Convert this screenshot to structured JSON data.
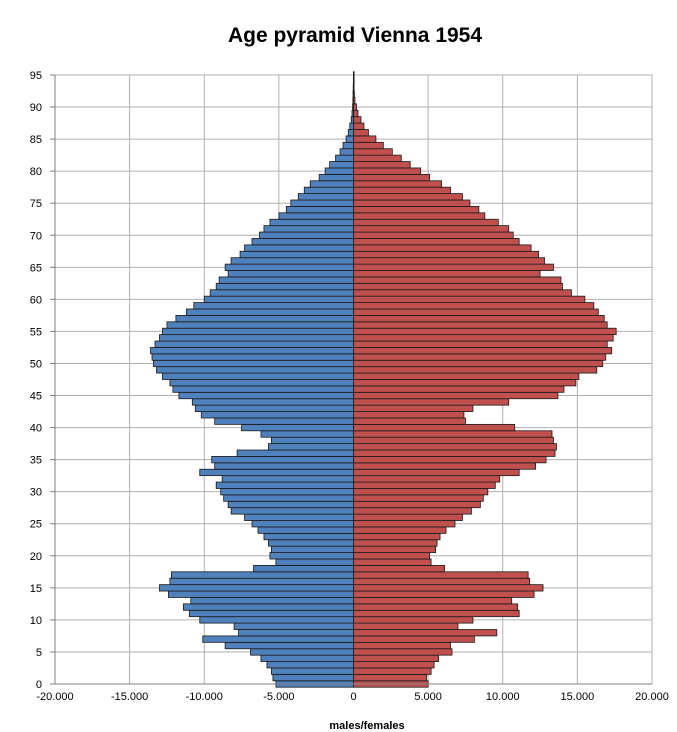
{
  "chart_data": {
    "type": "bar",
    "orientation": "horizontal",
    "title": "Age pyramid Vienna 1954",
    "xlabel": "males/females",
    "ylabel": "",
    "xlim": [
      -20000,
      20000
    ],
    "ylim": [
      0,
      95
    ],
    "x_ticks": [
      -20000,
      -15000,
      -10000,
      -5000,
      0,
      5000,
      10000,
      15000,
      20000
    ],
    "x_tick_labels": [
      "-20.000",
      "-15.000",
      "-10.000",
      "-5.000",
      "0",
      "5.000",
      "10.000",
      "15.000",
      "20.000"
    ],
    "y_ticks": [
      0,
      5,
      10,
      15,
      20,
      25,
      30,
      35,
      40,
      45,
      50,
      55,
      60,
      65,
      70,
      75,
      80,
      85,
      90,
      95
    ],
    "y_tick_labels": [
      "0",
      "5",
      "10",
      "15",
      "20",
      "25",
      "30",
      "35",
      "40",
      "45",
      "50",
      "55",
      "60",
      "65",
      "70",
      "75",
      "80",
      "85",
      "90",
      "95"
    ],
    "grid": true,
    "legend": "none",
    "categories": [
      0,
      1,
      2,
      3,
      4,
      5,
      6,
      7,
      8,
      9,
      10,
      11,
      12,
      13,
      14,
      15,
      16,
      17,
      18,
      19,
      20,
      21,
      22,
      23,
      24,
      25,
      26,
      27,
      28,
      29,
      30,
      31,
      32,
      33,
      34,
      35,
      36,
      37,
      38,
      39,
      40,
      41,
      42,
      43,
      44,
      45,
      46,
      47,
      48,
      49,
      50,
      51,
      52,
      53,
      54,
      55,
      56,
      57,
      58,
      59,
      60,
      61,
      62,
      63,
      64,
      65,
      66,
      67,
      68,
      69,
      70,
      71,
      72,
      73,
      74,
      75,
      76,
      77,
      78,
      79,
      80,
      81,
      82,
      83,
      84,
      85,
      86,
      87,
      88,
      89,
      90,
      91,
      92,
      93,
      94,
      95
    ],
    "series": [
      {
        "color": "#4f81bd",
        "values": [
          -5200,
          -5400,
          -5500,
          -5800,
          -6200,
          -6900,
          -8600,
          -10100,
          -7700,
          -8000,
          -10300,
          -11000,
          -11400,
          -10900,
          -12400,
          -13000,
          -12300,
          -12200,
          -6700,
          -5200,
          -5600,
          -5500,
          -5700,
          -6000,
          -6400,
          -6800,
          -7300,
          -8200,
          -8400,
          -8700,
          -8900,
          -9200,
          -8800,
          -10300,
          -9300,
          -9500,
          -7800,
          -5700,
          -5500,
          -6200,
          -7500,
          -9300,
          -10200,
          -10600,
          -10800,
          -11700,
          -12100,
          -12300,
          -12800,
          -13200,
          -13400,
          -13500,
          -13600,
          -13300,
          -13000,
          -12800,
          -12500,
          -11900,
          -11200,
          -10700,
          -10000,
          -9600,
          -9200,
          -9000,
          -8400,
          -8600,
          -8200,
          -7600,
          -7300,
          -6800,
          -6300,
          -6000,
          -5600,
          -5000,
          -4500,
          -4200,
          -3700,
          -3300,
          -2900,
          -2300,
          -1900,
          -1600,
          -1200,
          -900,
          -700,
          -500,
          -350,
          -250,
          -150,
          -100,
          -60,
          -40,
          -30,
          -20,
          -10,
          -5
        ]
      },
      {
        "color": "#c0504d",
        "values": [
          5000,
          4900,
          5200,
          5400,
          5700,
          6600,
          6500,
          8100,
          9600,
          7000,
          8000,
          11100,
          11000,
          10600,
          12100,
          12700,
          11800,
          11700,
          6100,
          5200,
          5100,
          5500,
          5600,
          5800,
          6200,
          6800,
          7300,
          7900,
          8500,
          8700,
          9000,
          9500,
          9800,
          11100,
          12200,
          12900,
          13500,
          13600,
          13400,
          13300,
          10800,
          7500,
          7400,
          8000,
          10400,
          13700,
          14100,
          14900,
          15100,
          16300,
          16700,
          16900,
          17300,
          17000,
          17400,
          17600,
          17000,
          16800,
          16400,
          16100,
          15500,
          14600,
          14000,
          13900,
          12500,
          13400,
          12800,
          12400,
          11900,
          11100,
          10700,
          10400,
          9700,
          8800,
          8400,
          7800,
          7300,
          6500,
          5900,
          5100,
          4500,
          3800,
          3200,
          2600,
          2000,
          1500,
          1000,
          700,
          500,
          300,
          200,
          100,
          60,
          40,
          20,
          10
        ]
      }
    ]
  }
}
